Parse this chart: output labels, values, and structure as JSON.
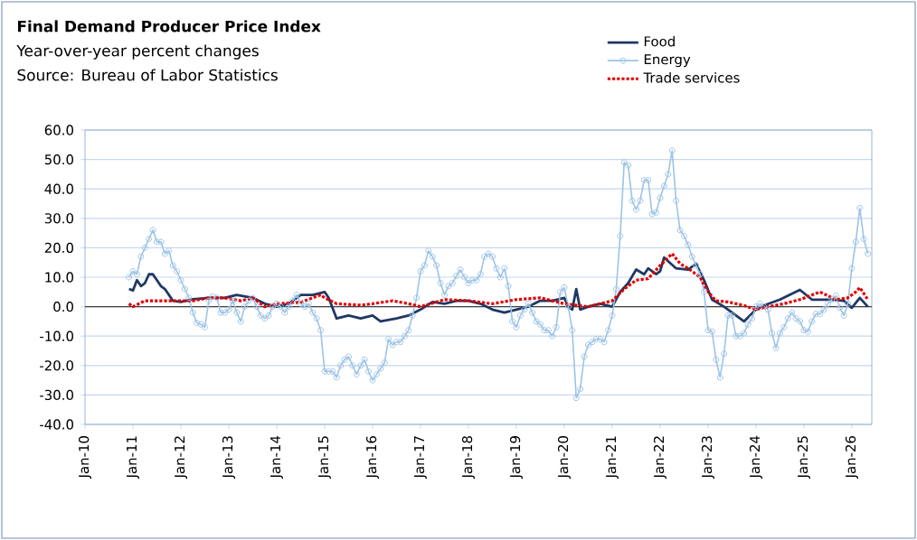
{
  "chart_data": {
    "type": "line",
    "title": "Final Demand Producer Price Index",
    "subtitle": "Year-over-year percent changes",
    "annotations": [
      "Source: Bureau of Labor Statistics"
    ],
    "xlim": [
      "2010-01",
      "2026-06"
    ],
    "xticks": [
      {
        "value": "2010-01",
        "label": "Jan-10"
      },
      {
        "value": "2011-01",
        "label": "Jan-11"
      },
      {
        "value": "2012-01",
        "label": "Jan-12"
      },
      {
        "value": "2013-01",
        "label": "Jan-13"
      },
      {
        "value": "2014-01",
        "label": "Jan-14"
      },
      {
        "value": "2015-01",
        "label": "Jan-15"
      },
      {
        "value": "2016-01",
        "label": "Jan-16"
      },
      {
        "value": "2017-01",
        "label": "Jan-17"
      },
      {
        "value": "2018-01",
        "label": "Jan-18"
      },
      {
        "value": "2019-01",
        "label": "Jan-19"
      },
      {
        "value": "2020-01",
        "label": "Jan-20"
      },
      {
        "value": "2021-01",
        "label": "Jan-21"
      },
      {
        "value": "2022-01",
        "label": "Jan-22"
      },
      {
        "value": "2023-01",
        "label": "Jan-23"
      },
      {
        "value": "2024-01",
        "label": "Jan-24"
      },
      {
        "value": "2025-01",
        "label": "Jan-25"
      },
      {
        "value": "2026-01",
        "label": "Jan-26"
      }
    ],
    "ylim": [
      -40,
      60
    ],
    "yticks": [
      {
        "value": -40,
        "label": "-40.0"
      },
      {
        "value": -30,
        "label": "-30.0"
      },
      {
        "value": -20,
        "label": "-20.0"
      },
      {
        "value": -10,
        "label": "-10.0"
      },
      {
        "value": 0,
        "label": "0.0"
      },
      {
        "value": 10,
        "label": "10.0"
      },
      {
        "value": 20,
        "label": "20.0"
      },
      {
        "value": 30,
        "label": "30.0"
      },
      {
        "value": 40,
        "label": "40.0"
      },
      {
        "value": 50,
        "label": "50.0"
      },
      {
        "value": 60,
        "label": "60.0"
      }
    ],
    "grid": "y",
    "legend": "top right",
    "ref_lines": [
      {
        "axis": "y",
        "value": 0,
        "color": "#404040"
      }
    ],
    "series": [
      {
        "name": "Food",
        "color": "#1f3864",
        "marker": "none",
        "line_style": "solid",
        "x": [
          "2010-12",
          "2011-01",
          "2011-02",
          "2011-03",
          "2011-04",
          "2011-05",
          "2011-06",
          "2011-07",
          "2011-08",
          "2011-09",
          "2011-10",
          "2011-11",
          "2012-01",
          "2012-04",
          "2012-08",
          "2012-12",
          "2013-03",
          "2013-07",
          "2013-10",
          "2014-01",
          "2014-04",
          "2014-07",
          "2014-10",
          "2015-01",
          "2015-02",
          "2015-04",
          "2015-07",
          "2015-10",
          "2016-01",
          "2016-03",
          "2016-07",
          "2016-10",
          "2017-01",
          "2017-04",
          "2017-07",
          "2017-10",
          "2018-01",
          "2018-04",
          "2018-07",
          "2018-10",
          "2019-01",
          "2019-04",
          "2019-07",
          "2019-10",
          "2020-01",
          "2020-02",
          "2020-03",
          "2020-04",
          "2020-05",
          "2020-07",
          "2020-10",
          "2021-01",
          "2021-03",
          "2021-05",
          "2021-07",
          "2021-09",
          "2021-10",
          "2021-11",
          "2021-12",
          "2022-01",
          "2022-02",
          "2022-05",
          "2022-08",
          "2022-10",
          "2022-12",
          "2023-02",
          "2023-05",
          "2023-10",
          "2024-01",
          "2024-03",
          "2024-07",
          "2024-12",
          "2025-03",
          "2025-08",
          "2025-11",
          "2026-01",
          "2026-03",
          "2026-05"
        ],
        "values": [
          6,
          5.5,
          9,
          7,
          8,
          11,
          11,
          9,
          7,
          6,
          4,
          2,
          1.6,
          2.5,
          3,
          3,
          4,
          3,
          1,
          0,
          1,
          4,
          4,
          5,
          3,
          -4,
          -3,
          -4,
          -3,
          -5,
          -4,
          -3,
          -1,
          1.6,
          1,
          2,
          2,
          1,
          -1,
          -2,
          -1,
          0,
          2,
          2,
          3,
          0,
          -1,
          6,
          -1,
          0,
          1,
          0,
          5,
          8,
          12.6,
          11,
          13,
          12,
          11,
          12,
          16.7,
          13,
          12.6,
          14.6,
          9,
          2.4,
          0,
          -5,
          -1,
          0.4,
          2.4,
          5.7,
          2.4,
          2.4,
          2,
          -0.4,
          3,
          0
        ]
      },
      {
        "name": "Energy",
        "color": "#9dc3e6",
        "marker": "circle",
        "line_style": "solid",
        "x": [
          "2010-12",
          "2011-01",
          "2011-02",
          "2011-03",
          "2011-04",
          "2011-05",
          "2011-06",
          "2011-07",
          "2011-08",
          "2011-09",
          "2011-10",
          "2011-11",
          "2011-12",
          "2012-01",
          "2012-02",
          "2012-03",
          "2012-04",
          "2012-05",
          "2012-06",
          "2012-07",
          "2012-08",
          "2012-09",
          "2012-10",
          "2012-11",
          "2012-12",
          "2013-01",
          "2013-02",
          "2013-03",
          "2013-04",
          "2013-05",
          "2013-06",
          "2013-07",
          "2013-08",
          "2013-09",
          "2013-10",
          "2013-11",
          "2013-12",
          "2014-01",
          "2014-02",
          "2014-03",
          "2014-04",
          "2014-05",
          "2014-06",
          "2014-07",
          "2014-08",
          "2014-09",
          "2014-10",
          "2014-11",
          "2014-12",
          "2015-01",
          "2015-02",
          "2015-03",
          "2015-04",
          "2015-05",
          "2015-06",
          "2015-07",
          "2015-08",
          "2015-09",
          "2015-10",
          "2015-11",
          "2015-12",
          "2016-01",
          "2016-02",
          "2016-03",
          "2016-04",
          "2016-05",
          "2016-06",
          "2016-07",
          "2016-08",
          "2016-09",
          "2016-10",
          "2016-11",
          "2016-12",
          "2017-01",
          "2017-02",
          "2017-03",
          "2017-04",
          "2017-05",
          "2017-06",
          "2017-07",
          "2017-08",
          "2017-09",
          "2017-10",
          "2017-11",
          "2017-12",
          "2018-01",
          "2018-02",
          "2018-03",
          "2018-04",
          "2018-05",
          "2018-06",
          "2018-07",
          "2018-08",
          "2018-09",
          "2018-10",
          "2018-11",
          "2018-12",
          "2019-01",
          "2019-02",
          "2019-03",
          "2019-04",
          "2019-05",
          "2019-06",
          "2019-07",
          "2019-08",
          "2019-09",
          "2019-10",
          "2019-11",
          "2019-12",
          "2020-01",
          "2020-02",
          "2020-03",
          "2020-04",
          "2020-05",
          "2020-06",
          "2020-07",
          "2020-08",
          "2020-09",
          "2020-10",
          "2020-11",
          "2020-12",
          "2021-01",
          "2021-02",
          "2021-03",
          "2021-04",
          "2021-05",
          "2021-06",
          "2021-07",
          "2021-08",
          "2021-09",
          "2021-10",
          "2021-11",
          "2021-12",
          "2022-01",
          "2022-02",
          "2022-03",
          "2022-04",
          "2022-05",
          "2022-06",
          "2022-07",
          "2022-08",
          "2022-09",
          "2022-10",
          "2022-11",
          "2022-12",
          "2023-01",
          "2023-02",
          "2023-03",
          "2023-04",
          "2023-05",
          "2023-06",
          "2023-07",
          "2023-08",
          "2023-09",
          "2023-10",
          "2023-11",
          "2023-12",
          "2024-01",
          "2024-02",
          "2024-03",
          "2024-04",
          "2024-05",
          "2024-06",
          "2024-07",
          "2024-08",
          "2024-09",
          "2024-10",
          "2024-11",
          "2024-12",
          "2025-01",
          "2025-02",
          "2025-03",
          "2025-04",
          "2025-05",
          "2025-06",
          "2025-07",
          "2025-08",
          "2025-09",
          "2025-10",
          "2025-11",
          "2025-12",
          "2026-01",
          "2026-02",
          "2026-03",
          "2026-04",
          "2026-05"
        ],
        "values": [
          10,
          12,
          11,
          17,
          20,
          23,
          26,
          22,
          22,
          18,
          19,
          14,
          12,
          9,
          6,
          3,
          -2,
          -5.5,
          -6,
          -7,
          2,
          3.5,
          3,
          -2,
          -2,
          -1,
          2,
          -2,
          -5,
          0,
          2,
          3,
          0,
          -3,
          -4,
          -3,
          0,
          1,
          0,
          -2,
          0,
          2,
          4,
          1,
          0,
          1,
          -2,
          -4,
          -8,
          -22,
          -22,
          -22,
          -24,
          -20,
          -18,
          -17,
          -20,
          -23,
          -20,
          -18,
          -22,
          -25,
          -23,
          -21,
          -19,
          -11,
          -13,
          -12,
          -12,
          -10,
          -8,
          -3,
          3,
          12,
          14,
          19,
          17,
          14,
          8,
          4,
          7,
          8,
          10.5,
          12.6,
          10,
          8,
          9,
          9,
          11,
          17,
          18,
          17,
          13,
          10,
          13,
          7,
          -5,
          -7,
          -3,
          -1,
          1,
          -2,
          -5,
          -6,
          -8,
          -8,
          -10,
          -7,
          5,
          6.5,
          0,
          -8,
          -31,
          -28,
          -17,
          -13,
          -12,
          -11,
          -11,
          -12,
          -8,
          -3,
          6,
          24,
          49,
          48,
          36,
          33,
          36,
          43,
          43,
          31.5,
          32,
          37,
          41,
          45,
          53,
          36,
          26,
          24,
          21,
          17,
          14,
          11,
          5,
          -8,
          -8.5,
          -18,
          -24,
          -16,
          -3,
          -3,
          -10,
          -10,
          -9,
          -6,
          -4,
          0,
          1,
          0,
          -1,
          -9,
          -14,
          -9,
          -7,
          -4,
          -2,
          -4,
          -5,
          -8,
          -8.5,
          -5,
          -2.5,
          -2.5,
          -1,
          1,
          2.4,
          3.7,
          -0.4,
          -3,
          1,
          13,
          22,
          33.5,
          23,
          18
        ]
      },
      {
        "name": "Trade services",
        "color": "#e00000",
        "marker": "none",
        "line_style": "dotted",
        "x": [
          "2010-12",
          "2011-01",
          "2011-04",
          "2011-08",
          "2011-12",
          "2012-04",
          "2012-08",
          "2012-12",
          "2013-04",
          "2013-07",
          "2013-10",
          "2014-01",
          "2014-07",
          "2014-12",
          "2015-01",
          "2015-04",
          "2015-10",
          "2016-01",
          "2016-06",
          "2016-10",
          "2017-01",
          "2017-07",
          "2018-01",
          "2018-07",
          "2019-01",
          "2019-07",
          "2020-01",
          "2020-07",
          "2021-01",
          "2021-04",
          "2021-07",
          "2021-10",
          "2022-01",
          "2022-04",
          "2022-06",
          "2022-08",
          "2022-11",
          "2023-01",
          "2023-03",
          "2023-06",
          "2023-10",
          "2024-01",
          "2024-04",
          "2024-08",
          "2024-12",
          "2025-05",
          "2025-09",
          "2025-12",
          "2026-02",
          "2026-03",
          "2026-05"
        ],
        "values": [
          1,
          0,
          2,
          2,
          2,
          2,
          3,
          3,
          2,
          3,
          0,
          1,
          1.5,
          4,
          3,
          1,
          0.5,
          1,
          2,
          1,
          0,
          2.4,
          2,
          1,
          2.4,
          3,
          1,
          0,
          2,
          6,
          9,
          9.5,
          14,
          18,
          14.6,
          13,
          10,
          5,
          2,
          1.6,
          0.4,
          -1,
          0,
          1,
          2.4,
          5,
          2.4,
          3,
          5,
          6.5,
          2.4
        ]
      }
    ]
  }
}
